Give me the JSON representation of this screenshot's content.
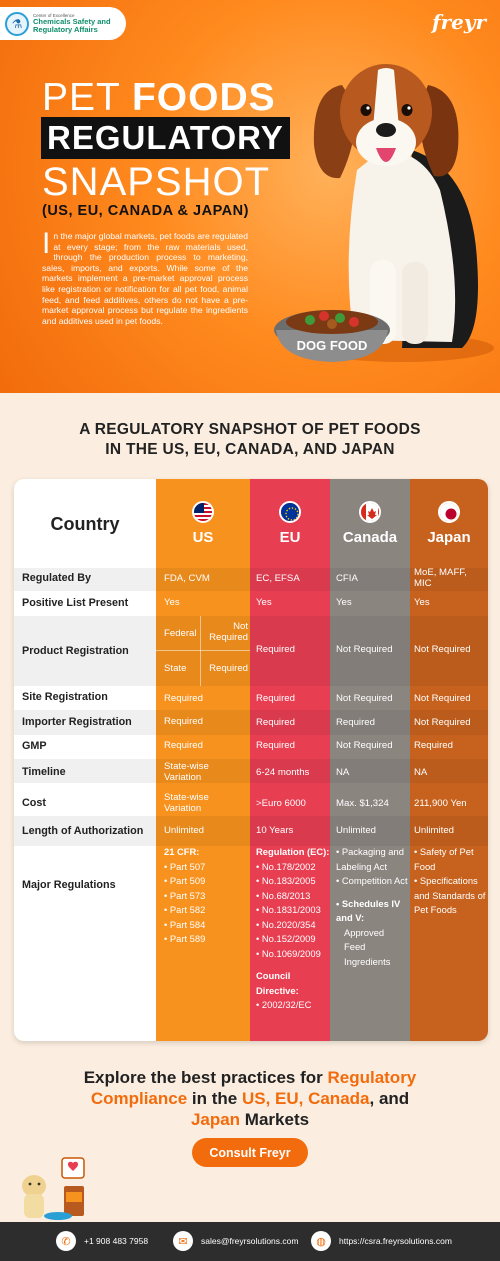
{
  "header": {
    "coe_small": "Center of Excellence",
    "coe_title_1": "Chemicals Safety and",
    "coe_title_2": "Regulatory Affairs",
    "brand": "freyr"
  },
  "hero": {
    "title_a": "PET ",
    "title_b": "FOODS",
    "title_2": "REGULATORY",
    "title_3": "SNAPSHOT",
    "title_4": "(US, EU, CANADA & JAPAN)",
    "intro_cap": "I",
    "intro": "n the major global markets, pet foods are regulated at every stage; from the raw materials used, through the production process to marketing, sales, imports, and exports. While some of the markets implement a pre-market approval process like registration or notification for all pet food, animal feed, and feed additives, others do not have a pre-market approval process but regulate the ingredients and additives used in pet foods.",
    "bowl_label": "DOG FOOD"
  },
  "section_title_1": "A REGULATORY SNAPSHOT OF PET FOODS",
  "section_title_2": "IN THE US, EU, CANADA, AND JAPAN",
  "table": {
    "country_header": "Country",
    "countries": [
      "US",
      "EU",
      "Canada",
      "Japan"
    ],
    "rows": {
      "regulated_by": {
        "label": "Regulated By",
        "us": "FDA, CVM",
        "eu": "EC, EFSA",
        "ca": "CFIA",
        "jp": "MoE, MAFF, MIC"
      },
      "positive_list": {
        "label": "Positive List Present",
        "us": "Yes",
        "eu": "Yes",
        "ca": "Yes",
        "jp": "Yes"
      },
      "product_reg": {
        "label": "Product Registration",
        "us_federal": "Federal",
        "us_federal_val": "Not Required",
        "us_state": "State",
        "us_state_val": "Required",
        "eu": "Required",
        "ca": "Not Required",
        "jp": "Not Required"
      },
      "site_reg": {
        "label": "Site Registration",
        "us": "Required",
        "eu": "Required",
        "ca": "Not Required",
        "jp": "Not Required"
      },
      "importer_reg": {
        "label": "Importer Registration",
        "us": "Required",
        "eu": "Required",
        "ca": "Required",
        "jp": "Not Required"
      },
      "gmp": {
        "label": "GMP",
        "us": "Required",
        "eu": "Required",
        "ca": "Not Required",
        "jp": "Required"
      },
      "timeline": {
        "label": "Timeline",
        "us": "State-wise Variation",
        "eu": "6-24 months",
        "ca": "NA",
        "jp": "NA"
      },
      "cost": {
        "label": "Cost",
        "us": "State-wise Variation",
        "eu": ">Euro 6000",
        "ca": "Max. $1,324",
        "jp": "211,900 Yen"
      },
      "auth_length": {
        "label": "Length of Authorization",
        "us": "Unlimited",
        "eu": "10 Years",
        "ca": "Unlimited",
        "jp": "Unlimited"
      },
      "major_regs": {
        "label": "Major Regulations",
        "us_head": "21 CFR:",
        "us": [
          "• Part 507",
          "• Part 509",
          "• Part 573",
          "• Part 582",
          "• Part 584",
          "• Part 589"
        ],
        "eu_head": "Regulation (EC):",
        "eu": [
          "• No.178/2002",
          "• No.183/2005",
          "• No.68/2013",
          "• No.1831/2003",
          "• No.2020/354",
          "• No.152/2009",
          "• No.1069/2009"
        ],
        "eu_head2": "Council Directive:",
        "eu2": "• 2002/32/EC",
        "ca_1": "• Packaging and Labeling Act",
        "ca_2": "• Competition Act",
        "ca_3_head": "• Schedules IV and V:",
        "ca_3": "Approved Feed Ingredients",
        "jp_1": "• Safety of Pet Food",
        "jp_2": "• Specifications and Standards of Pet Foods"
      }
    }
  },
  "cta": {
    "l1_a": "Explore the best practices for ",
    "l1_b": "Regulatory",
    "l2_a": "Compliance",
    "l2_b": " in the ",
    "l2_c": "US, EU, Canada",
    "l2_d": ", and",
    "l3_a": "Japan",
    "l3_b": " Markets",
    "button": "Consult Freyr"
  },
  "footer": {
    "phone": "+1 908 483 7958",
    "email": "sales@freyrsolutions.com",
    "web": "https://csra.freyrsolutions.com"
  },
  "colors": {
    "orange": "#f26b0c",
    "us": "#f7921e",
    "eu": "#e83e52",
    "canada": "#8b8580",
    "japan": "#c7621e"
  }
}
